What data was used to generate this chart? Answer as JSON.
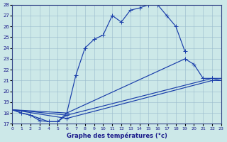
{
  "title": "Graphe des températures (°c)",
  "xlabel_ticks": [
    0,
    1,
    2,
    3,
    4,
    5,
    6,
    7,
    8,
    9,
    10,
    11,
    12,
    13,
    14,
    15,
    16,
    17,
    18,
    19,
    20,
    21,
    22,
    23
  ],
  "ylim": [
    17,
    28
  ],
  "xlim": [
    0,
    23
  ],
  "yticks": [
    17,
    18,
    19,
    20,
    21,
    22,
    23,
    24,
    25,
    26,
    27,
    28
  ],
  "background_color": "#cce8e8",
  "grid_color": "#99bbcc",
  "line_color": "#1a3eaa",
  "curve_main_x": [
    0,
    1,
    2,
    3,
    4,
    5,
    6,
    7,
    8,
    9,
    10,
    11,
    12,
    13,
    14,
    15,
    16,
    17,
    18,
    19
  ],
  "curve_main_y": [
    18.3,
    18.0,
    17.8,
    17.3,
    17.2,
    17.2,
    18.0,
    21.5,
    24.0,
    24.8,
    25.2,
    27.0,
    26.4,
    27.5,
    27.7,
    28.0,
    28.0,
    27.0,
    26.0,
    23.7
  ],
  "curve_bottom_x": [
    0,
    1,
    2,
    3,
    4,
    5,
    6
  ],
  "curve_bottom_y": [
    18.3,
    18.0,
    17.8,
    17.5,
    17.2,
    17.2,
    17.8
  ],
  "line1_x": [
    0,
    6,
    19,
    20,
    21,
    22,
    23
  ],
  "line1_y": [
    18.3,
    18.0,
    23.0,
    22.5,
    21.2,
    21.2,
    21.0
  ],
  "line2_x": [
    0,
    6,
    22,
    23
  ],
  "line2_y": [
    18.3,
    17.8,
    21.2,
    21.2
  ],
  "line3_x": [
    0,
    6,
    22,
    23
  ],
  "line3_y": [
    18.3,
    17.5,
    21.0,
    21.0
  ]
}
